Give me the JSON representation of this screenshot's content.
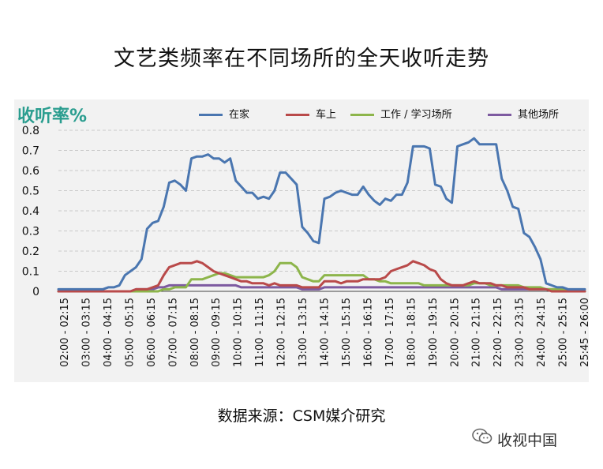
{
  "chart_data": {
    "type": "line",
    "title": "文艺类频率在不同场所的全天收听走势",
    "ylabel": "收听率%",
    "ylim": [
      0,
      0.8
    ],
    "yticks": [
      "0",
      "0.1",
      "0.2",
      "0.3",
      "0.4",
      "0.5",
      "0.6",
      "0.7",
      "0.8"
    ],
    "grid": true,
    "legend_position": "top",
    "x_tick_labels": [
      "02:00 - 02:15",
      "03:00 - 03:15",
      "04:00 - 04:15",
      "05:00 - 05:15",
      "06:00 - 06:15",
      "07:00 - 07:15",
      "08:00 - 08:15",
      "09:00 - 09:15",
      "10:00 - 10:15",
      "11:00 - 11:15",
      "12:00 - 12:15",
      "13:00 - 13:15",
      "14:00 - 14:15",
      "15:00 - 15:15",
      "16:00 - 16:15",
      "17:00 - 17:15",
      "18:00 - 18:15",
      "19:00 - 19:15",
      "20:00 - 20:15",
      "21:00 - 21:15",
      "22:00 - 22:15",
      "23:00 - 23:15",
      "24:00 - 24:15",
      "25:00 - 25:15",
      "25:45 - 26:00"
    ],
    "series": [
      {
        "name": "在家",
        "color": "#4a76b0",
        "values": [
          0.01,
          0.01,
          0.01,
          0.01,
          0.01,
          0.01,
          0.01,
          0.01,
          0.01,
          0.02,
          0.02,
          0.03,
          0.08,
          0.1,
          0.12,
          0.16,
          0.31,
          0.34,
          0.35,
          0.42,
          0.54,
          0.55,
          0.53,
          0.5,
          0.66,
          0.67,
          0.67,
          0.68,
          0.66,
          0.66,
          0.64,
          0.66,
          0.55,
          0.52,
          0.49,
          0.49,
          0.46,
          0.47,
          0.46,
          0.5,
          0.59,
          0.59,
          0.56,
          0.53,
          0.32,
          0.29,
          0.25,
          0.24,
          0.46,
          0.47,
          0.49,
          0.5,
          0.49,
          0.48,
          0.48,
          0.52,
          0.48,
          0.45,
          0.43,
          0.46,
          0.45,
          0.48,
          0.48,
          0.54,
          0.72,
          0.72,
          0.72,
          0.71,
          0.53,
          0.52,
          0.46,
          0.44,
          0.72,
          0.73,
          0.74,
          0.76,
          0.73,
          0.73,
          0.73,
          0.73,
          0.56,
          0.5,
          0.42,
          0.41,
          0.29,
          0.27,
          0.22,
          0.16,
          0.04,
          0.03,
          0.02,
          0.02,
          0.01,
          0.01,
          0.01,
          0.01
        ]
      },
      {
        "name": "车上",
        "color": "#b94a4a",
        "values": [
          0.0,
          0.0,
          0.0,
          0.0,
          0.0,
          0.0,
          0.0,
          0.0,
          0.0,
          0.0,
          0.0,
          0.0,
          0.0,
          0.0,
          0.01,
          0.01,
          0.01,
          0.02,
          0.03,
          0.08,
          0.12,
          0.13,
          0.14,
          0.14,
          0.14,
          0.15,
          0.14,
          0.12,
          0.1,
          0.09,
          0.08,
          0.07,
          0.06,
          0.05,
          0.05,
          0.04,
          0.04,
          0.04,
          0.03,
          0.04,
          0.03,
          0.03,
          0.03,
          0.03,
          0.02,
          0.02,
          0.02,
          0.02,
          0.05,
          0.05,
          0.05,
          0.04,
          0.05,
          0.05,
          0.05,
          0.06,
          0.06,
          0.06,
          0.06,
          0.07,
          0.1,
          0.11,
          0.12,
          0.13,
          0.15,
          0.14,
          0.13,
          0.11,
          0.1,
          0.06,
          0.04,
          0.03,
          0.03,
          0.03,
          0.04,
          0.05,
          0.04,
          0.04,
          0.04,
          0.03,
          0.03,
          0.02,
          0.02,
          0.02,
          0.02,
          0.01,
          0.01,
          0.01,
          0.01,
          0.0,
          0.0,
          0.0,
          0.0,
          0.0,
          0.0,
          0.0
        ]
      },
      {
        "name": "工作 / 学习场所",
        "color": "#8db54b",
        "values": [
          0.0,
          0.0,
          0.0,
          0.0,
          0.0,
          0.0,
          0.0,
          0.0,
          0.0,
          0.0,
          0.0,
          0.0,
          0.0,
          0.0,
          0.0,
          0.0,
          0.0,
          0.0,
          0.0,
          0.01,
          0.01,
          0.02,
          0.02,
          0.02,
          0.06,
          0.06,
          0.06,
          0.07,
          0.08,
          0.09,
          0.09,
          0.08,
          0.07,
          0.07,
          0.07,
          0.07,
          0.07,
          0.07,
          0.08,
          0.1,
          0.14,
          0.14,
          0.14,
          0.12,
          0.07,
          0.06,
          0.05,
          0.05,
          0.08,
          0.08,
          0.08,
          0.08,
          0.08,
          0.08,
          0.08,
          0.08,
          0.06,
          0.06,
          0.05,
          0.05,
          0.04,
          0.04,
          0.04,
          0.04,
          0.04,
          0.04,
          0.03,
          0.03,
          0.03,
          0.03,
          0.03,
          0.03,
          0.03,
          0.03,
          0.03,
          0.04,
          0.04,
          0.04,
          0.03,
          0.03,
          0.03,
          0.03,
          0.03,
          0.03,
          0.02,
          0.02,
          0.02,
          0.02,
          0.01,
          0.01,
          0.01,
          0.01,
          0.0,
          0.0,
          0.0,
          0.0
        ]
      },
      {
        "name": "其他场所",
        "color": "#7d5aa0",
        "values": [
          0.0,
          0.0,
          0.0,
          0.0,
          0.0,
          0.0,
          0.0,
          0.0,
          0.0,
          0.0,
          0.0,
          0.0,
          0.0,
          0.0,
          0.01,
          0.01,
          0.01,
          0.01,
          0.02,
          0.02,
          0.03,
          0.03,
          0.03,
          0.03,
          0.03,
          0.03,
          0.03,
          0.03,
          0.03,
          0.03,
          0.03,
          0.03,
          0.03,
          0.02,
          0.02,
          0.02,
          0.02,
          0.02,
          0.02,
          0.02,
          0.02,
          0.02,
          0.02,
          0.02,
          0.01,
          0.01,
          0.01,
          0.01,
          0.02,
          0.02,
          0.02,
          0.02,
          0.02,
          0.02,
          0.02,
          0.02,
          0.02,
          0.02,
          0.02,
          0.02,
          0.02,
          0.02,
          0.02,
          0.02,
          0.02,
          0.02,
          0.02,
          0.02,
          0.02,
          0.02,
          0.02,
          0.02,
          0.02,
          0.02,
          0.02,
          0.02,
          0.02,
          0.02,
          0.02,
          0.02,
          0.01,
          0.01,
          0.01,
          0.01,
          0.01,
          0.01,
          0.01,
          0.01,
          0.01,
          0.01,
          0.01,
          0.0,
          0.0,
          0.0,
          0.0,
          0.0
        ]
      }
    ]
  },
  "source": "数据来源：CSM媒介研究",
  "watermark": "收视中国",
  "watermark_icon": "wechat-icon"
}
